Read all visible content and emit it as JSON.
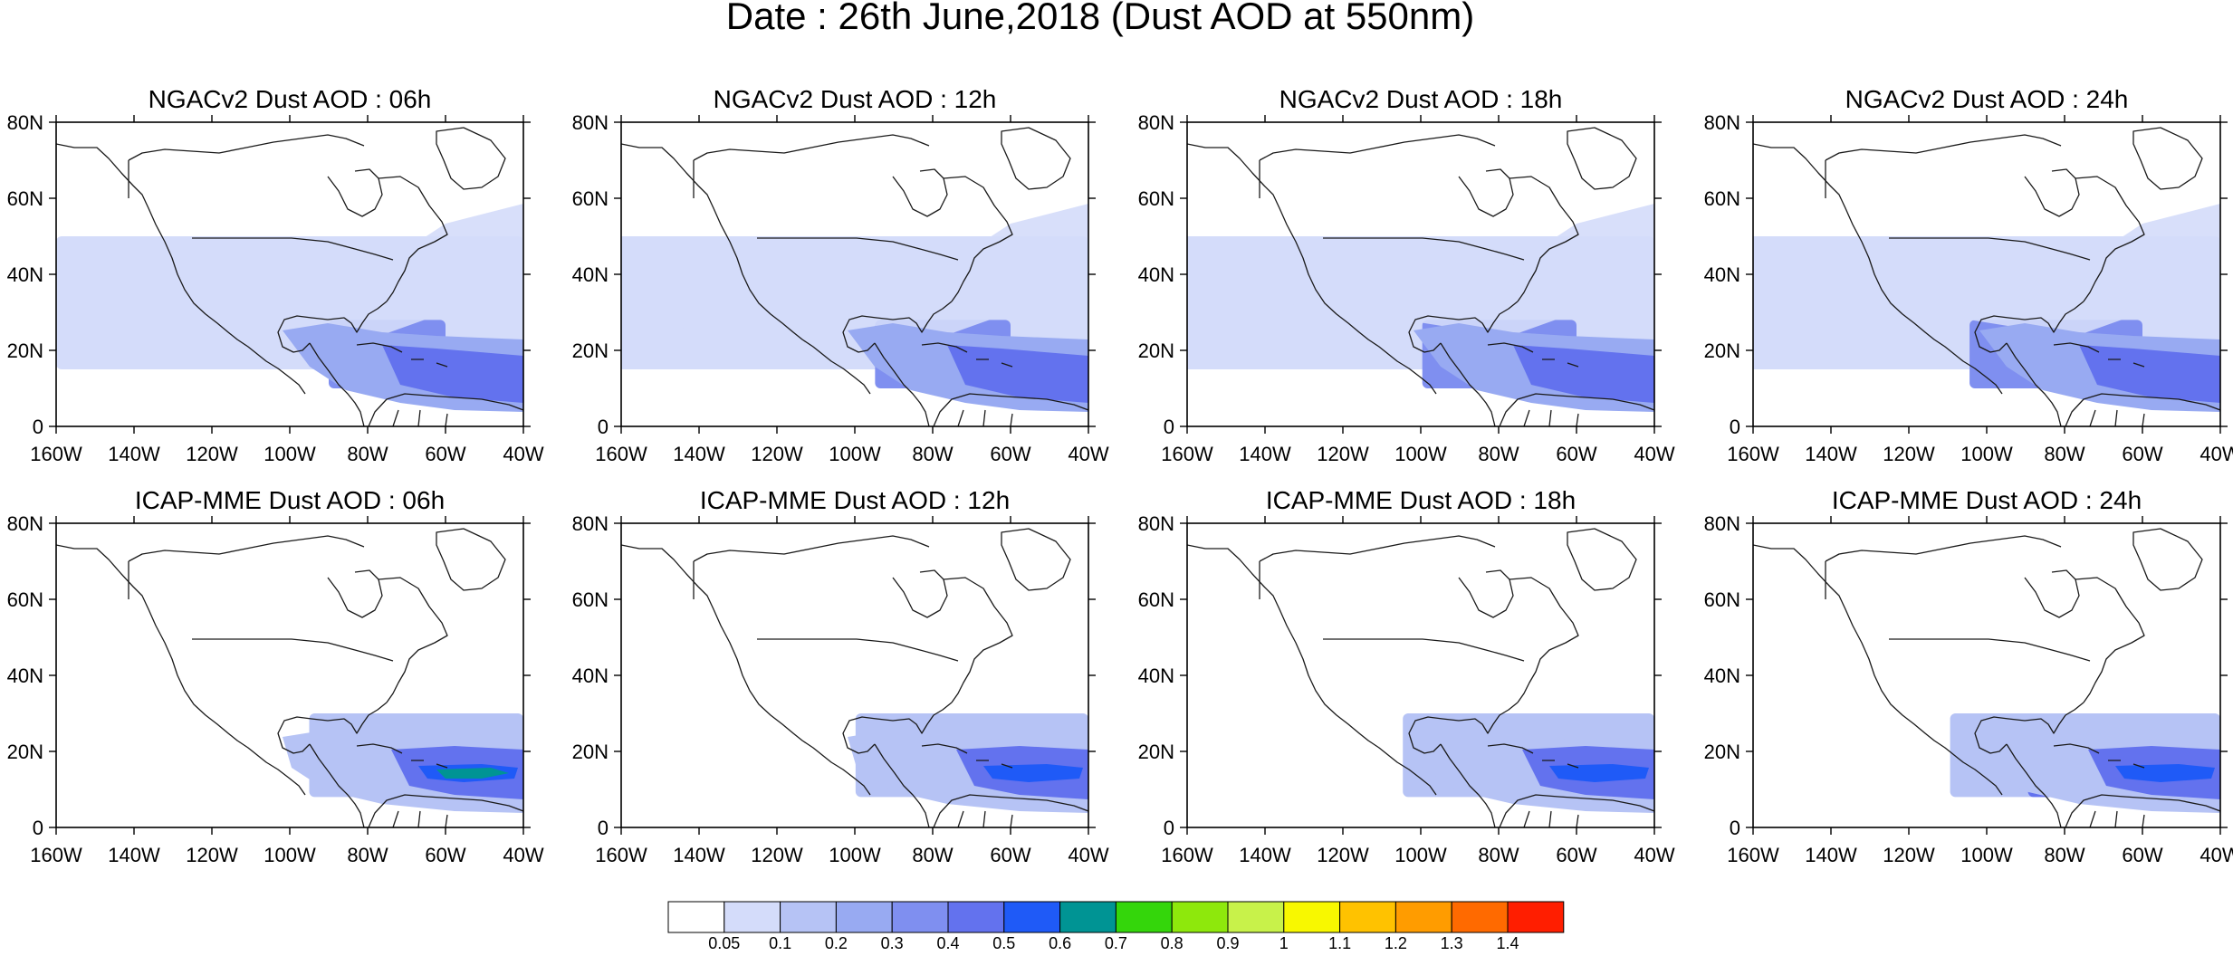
{
  "title": "Date : 26th June,2018 (Dust AOD at 550nm)",
  "x_ticks": [
    "160W",
    "140W",
    "120W",
    "100W",
    "80W",
    "60W",
    "40W"
  ],
  "y_ticks": [
    "80N",
    "60N",
    "40N",
    "20N",
    "0"
  ],
  "panels": [
    {
      "title": "NGACv2 Dust AOD : 06h",
      "model": "NGACv2",
      "hour": 6
    },
    {
      "title": "NGACv2 Dust AOD : 12h",
      "model": "NGACv2",
      "hour": 12
    },
    {
      "title": "NGACv2 Dust AOD : 18h",
      "model": "NGACv2",
      "hour": 18
    },
    {
      "title": "NGACv2 Dust AOD : 24h",
      "model": "NGACv2",
      "hour": 24
    },
    {
      "title": "ICAP-MME Dust AOD : 06h",
      "model": "ICAP-MME",
      "hour": 6
    },
    {
      "title": "ICAP-MME Dust AOD : 12h",
      "model": "ICAP-MME",
      "hour": 12
    },
    {
      "title": "ICAP-MME Dust AOD : 18h",
      "model": "ICAP-MME",
      "hour": 18
    },
    {
      "title": "ICAP-MME Dust AOD : 24h",
      "model": "ICAP-MME",
      "hour": 24
    }
  ],
  "colorbar": {
    "labels": [
      "0.05",
      "0.1",
      "0.2",
      "0.3",
      "0.4",
      "0.5",
      "0.6",
      "0.7",
      "0.8",
      "0.9",
      "1",
      "1.1",
      "1.2",
      "1.3",
      "1.4"
    ],
    "colors": [
      "#ffffff",
      "#d4dcfa",
      "#b6c3f5",
      "#98aaf2",
      "#7f8ff0",
      "#6372ee",
      "#1f5af7",
      "#009494",
      "#34d60b",
      "#8ee80c",
      "#c8f24a",
      "#f8f800",
      "#ffc200",
      "#ff9c00",
      "#ff6a00",
      "#ff1e00"
    ]
  },
  "map_colors": {
    "outline": "#1a1a1a",
    "frame": "#000000"
  },
  "chart_data": {
    "type": "heatmap",
    "title": "Date : 26th June,2018 (Dust AOD at 550nm)",
    "x_range": [
      "160W",
      "40W"
    ],
    "y_range": [
      "0",
      "80N"
    ],
    "variable": "Dust AOD at 550nm",
    "regions": {
      "NGACv2": [
        {
          "lon": [
            -65,
            -40
          ],
          "lat": [
            8,
            22
          ],
          "level": "0.4-0.5"
        },
        {
          "lon": [
            -90,
            -60
          ],
          "lat": [
            10,
            28
          ],
          "level": "0.3-0.4"
        },
        {
          "lon": [
            -160,
            -40
          ],
          "lat": [
            15,
            50
          ],
          "level": "0.05-0.1"
        }
      ],
      "ICAP-MME": [
        {
          "lon": [
            -70,
            -45
          ],
          "lat": [
            10,
            18
          ],
          "level": "0.6-0.8"
        },
        {
          "lon": [
            -75,
            -40
          ],
          "lat": [
            8,
            22
          ],
          "level": "0.4-0.5"
        },
        {
          "lon": [
            -95,
            -40
          ],
          "lat": [
            8,
            30
          ],
          "level": "0.1-0.2"
        }
      ]
    }
  }
}
